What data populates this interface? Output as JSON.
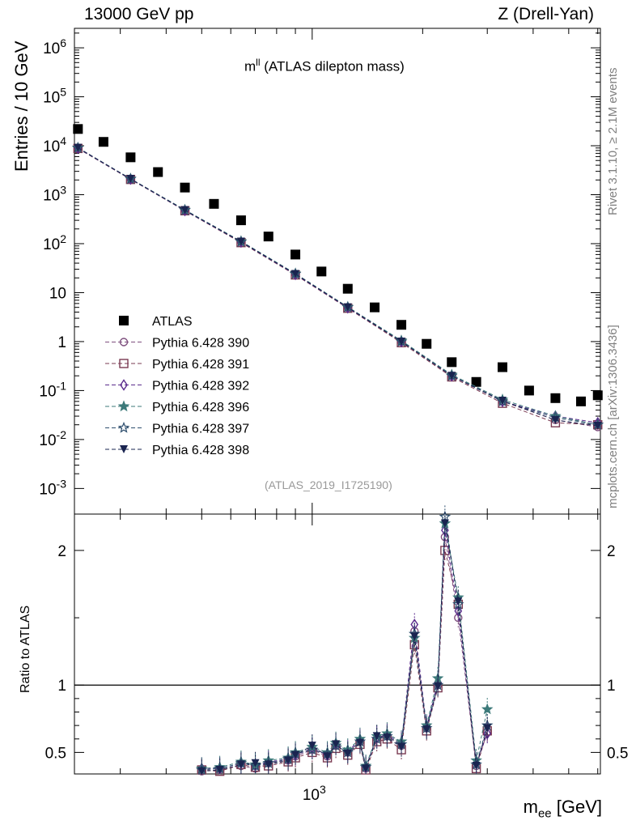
{
  "header": {
    "left": "13000 GeV pp",
    "right": "Z (Drell-Yan)"
  },
  "side": {
    "rivet": "Rivet 3.1.10, ≥ 2.1M events",
    "mcplots": "mcplots.cern.ch [arXiv:1306.3436]"
  },
  "plot_title_prefix": "m",
  "plot_title_sup": "ll",
  "plot_title_suffix": " (ATLAS dilepton mass)",
  "analysis_id": "(ATLAS_2019_I1725190)",
  "axis": {
    "ylabel": "Entries / 10 GeV",
    "ratio_ylabel": "Ratio to ATLAS",
    "xlabel_base": "m",
    "xlabel_sub": "ee",
    "xlabel_unit": " [GeV]"
  },
  "colors": {
    "atlas": "#000000",
    "p390": "#7e4f7e",
    "p391": "#7a3a52",
    "p392": "#5a2b8c",
    "p396": "#3d7a7a",
    "p397": "#2f4f6e",
    "p398": "#1a2450"
  },
  "chart_data": [
    {
      "type": "scatter",
      "panel": "main",
      "title": "m^ll (ATLAS dilepton mass)",
      "xlabel": "m_ee [GeV]",
      "ylabel": "Entries / 10 GeV",
      "x_scale": "log",
      "y_scale": "log",
      "xlim": [
        225,
        6100
      ],
      "ylim": [
        0.0003,
        2500000
      ],
      "y_ticks": [
        "10^-3",
        "10^-2",
        "10^-1",
        "1",
        "10",
        "10^2",
        "10^3",
        "10^4",
        "10^5",
        "10^6"
      ],
      "x_ticks": [
        "10^3"
      ],
      "legend_position": "middle-left",
      "series": [
        {
          "name": "ATLAS",
          "marker": "filled-square",
          "x": [
            230,
            270,
            320,
            380,
            450,
            540,
            640,
            760,
            900,
            1060,
            1250,
            1480,
            1750,
            2050,
            2400,
            2800,
            3300,
            3900,
            4600,
            5400,
            6000
          ],
          "y": [
            22000,
            12000,
            5800,
            2900,
            1400,
            650,
            300,
            140,
            60,
            27,
            12,
            5.0,
            2.2,
            0.9,
            0.38,
            0.15,
            0.3,
            0.1,
            0.07,
            0.06,
            0.08
          ]
        },
        {
          "name": "Pythia 6.428 390",
          "marker": "open-circle",
          "x": [
            230,
            320,
            450,
            640,
            900,
            1250,
            1750,
            2400,
            3300,
            4600,
            6000
          ],
          "y": [
            9000,
            2100,
            480,
            110,
            24,
            5.0,
            1.0,
            0.2,
            0.06,
            0.025,
            0.018
          ]
        },
        {
          "name": "Pythia 6.428 391",
          "marker": "open-square",
          "x": [
            230,
            320,
            450,
            640,
            900,
            1250,
            1750,
            2400,
            3300,
            4600,
            6000
          ],
          "y": [
            8800,
            2050,
            470,
            105,
            23,
            4.8,
            0.95,
            0.19,
            0.055,
            0.022,
            0.02
          ]
        },
        {
          "name": "Pythia 6.428 392",
          "marker": "open-diamond",
          "x": [
            230,
            320,
            450,
            640,
            900,
            1250,
            1750,
            2400,
            3300,
            4600,
            6000
          ],
          "y": [
            8900,
            2080,
            475,
            108,
            23.5,
            4.9,
            1.0,
            0.2,
            0.06,
            0.03,
            0.022
          ]
        },
        {
          "name": "Pythia 6.428 396",
          "marker": "filled-star",
          "x": [
            230,
            320,
            450,
            640,
            900,
            1250,
            1750,
            2400,
            3300,
            4600,
            6000
          ],
          "y": [
            9100,
            2120,
            490,
            112,
            24.5,
            5.1,
            1.05,
            0.21,
            0.065,
            0.03,
            0.02
          ]
        },
        {
          "name": "Pythia 6.428 397",
          "marker": "open-star",
          "x": [
            230,
            320,
            450,
            640,
            900,
            1250,
            1750,
            2400,
            3300,
            4600,
            6000
          ],
          "y": [
            9000,
            2090,
            480,
            109,
            24,
            5.0,
            1.0,
            0.2,
            0.06,
            0.028,
            0.02
          ]
        },
        {
          "name": "Pythia 6.428 398",
          "marker": "filled-triangle-down",
          "x": [
            230,
            320,
            450,
            640,
            900,
            1250,
            1750,
            2400,
            3300,
            4600,
            6000
          ],
          "y": [
            9050,
            2100,
            482,
            110,
            24,
            5.0,
            1.0,
            0.2,
            0.062,
            0.025,
            0.019
          ]
        }
      ]
    },
    {
      "type": "scatter",
      "panel": "ratio",
      "xlabel": "m_ee [GeV]",
      "ylabel": "Ratio to ATLAS",
      "x_scale": "log",
      "xlim": [
        225,
        6100
      ],
      "ylim": [
        0.34,
        2.27
      ],
      "y_ticks": [
        "0.5",
        "1",
        "2"
      ],
      "reference_line": 1,
      "series": [
        {
          "name": "Pythia 6.428 390",
          "x": [
            500,
            560,
            640,
            700,
            760,
            860,
            900,
            1000,
            1100,
            1160,
            1250,
            1350,
            1400,
            1500,
            1600,
            1750,
            1900,
            2050,
            2200,
            2300,
            2500,
            2800,
            3000
          ],
          "y": [
            0.36,
            0.37,
            0.4,
            0.38,
            0.42,
            0.44,
            0.47,
            0.52,
            0.47,
            0.55,
            0.5,
            0.58,
            0.38,
            0.6,
            0.62,
            0.55,
            1.4,
            0.68,
            1.0,
            2.1,
            1.5,
            0.4,
            0.65
          ]
        },
        {
          "name": "Pythia 6.428 391",
          "x": [
            500,
            560,
            640,
            700,
            760,
            860,
            900,
            1000,
            1100,
            1160,
            1250,
            1350,
            1400,
            1500,
            1600,
            1750,
            1900,
            2050,
            2200,
            2300,
            2500,
            2800,
            3000
          ],
          "y": [
            0.37,
            0.36,
            0.41,
            0.39,
            0.4,
            0.43,
            0.46,
            0.5,
            0.46,
            0.53,
            0.48,
            0.56,
            0.37,
            0.58,
            0.6,
            0.52,
            1.3,
            0.66,
            0.98,
            2.0,
            1.6,
            0.38,
            0.66
          ]
        },
        {
          "name": "Pythia 6.428 392",
          "x": [
            500,
            560,
            640,
            700,
            760,
            860,
            900,
            1000,
            1100,
            1160,
            1250,
            1350,
            1400,
            1500,
            1600,
            1750,
            1900,
            2050,
            2200,
            2300,
            2500,
            2800,
            3000
          ],
          "y": [
            0.38,
            0.38,
            0.42,
            0.4,
            0.43,
            0.45,
            0.48,
            0.53,
            0.48,
            0.56,
            0.51,
            0.59,
            0.39,
            0.61,
            0.63,
            0.57,
            1.45,
            0.69,
            1.02,
            2.15,
            1.55,
            0.42,
            0.64
          ]
        },
        {
          "name": "Pythia 6.428 396",
          "x": [
            500,
            560,
            640,
            700,
            760,
            860,
            900,
            1000,
            1100,
            1160,
            1250,
            1350,
            1400,
            1500,
            1600,
            1750,
            1900,
            2050,
            2200,
            2300,
            2500,
            2800,
            3000
          ],
          "y": [
            0.38,
            0.39,
            0.43,
            0.41,
            0.44,
            0.46,
            0.5,
            0.54,
            0.5,
            0.57,
            0.52,
            0.6,
            0.4,
            0.62,
            0.64,
            0.58,
            1.35,
            0.7,
            1.05,
            2.2,
            1.65,
            0.44,
            0.82
          ]
        },
        {
          "name": "Pythia 6.428 397",
          "x": [
            500,
            560,
            640,
            700,
            760,
            860,
            900,
            1000,
            1100,
            1160,
            1250,
            1350,
            1400,
            1500,
            1600,
            1750,
            1900,
            2050,
            2200,
            2300,
            2500,
            2800,
            3000
          ],
          "y": [
            0.37,
            0.38,
            0.42,
            0.4,
            0.42,
            0.45,
            0.49,
            0.52,
            0.49,
            0.55,
            0.5,
            0.58,
            0.39,
            0.6,
            0.62,
            0.56,
            1.38,
            0.68,
            1.0,
            2.25,
            1.6,
            0.41,
            0.7
          ]
        },
        {
          "name": "Pythia 6.428 398",
          "x": [
            500,
            560,
            640,
            700,
            760,
            860,
            900,
            1000,
            1100,
            1160,
            1250,
            1350,
            1400,
            1500,
            1600,
            1750,
            1900,
            2050,
            2200,
            2300,
            2500,
            2800,
            3000
          ],
          "y": [
            0.36,
            0.37,
            0.41,
            0.42,
            0.41,
            0.44,
            0.48,
            0.55,
            0.47,
            0.56,
            0.49,
            0.57,
            0.38,
            0.62,
            0.61,
            0.54,
            1.36,
            0.67,
            0.99,
            2.2,
            1.62,
            0.4,
            0.68
          ]
        }
      ]
    }
  ]
}
